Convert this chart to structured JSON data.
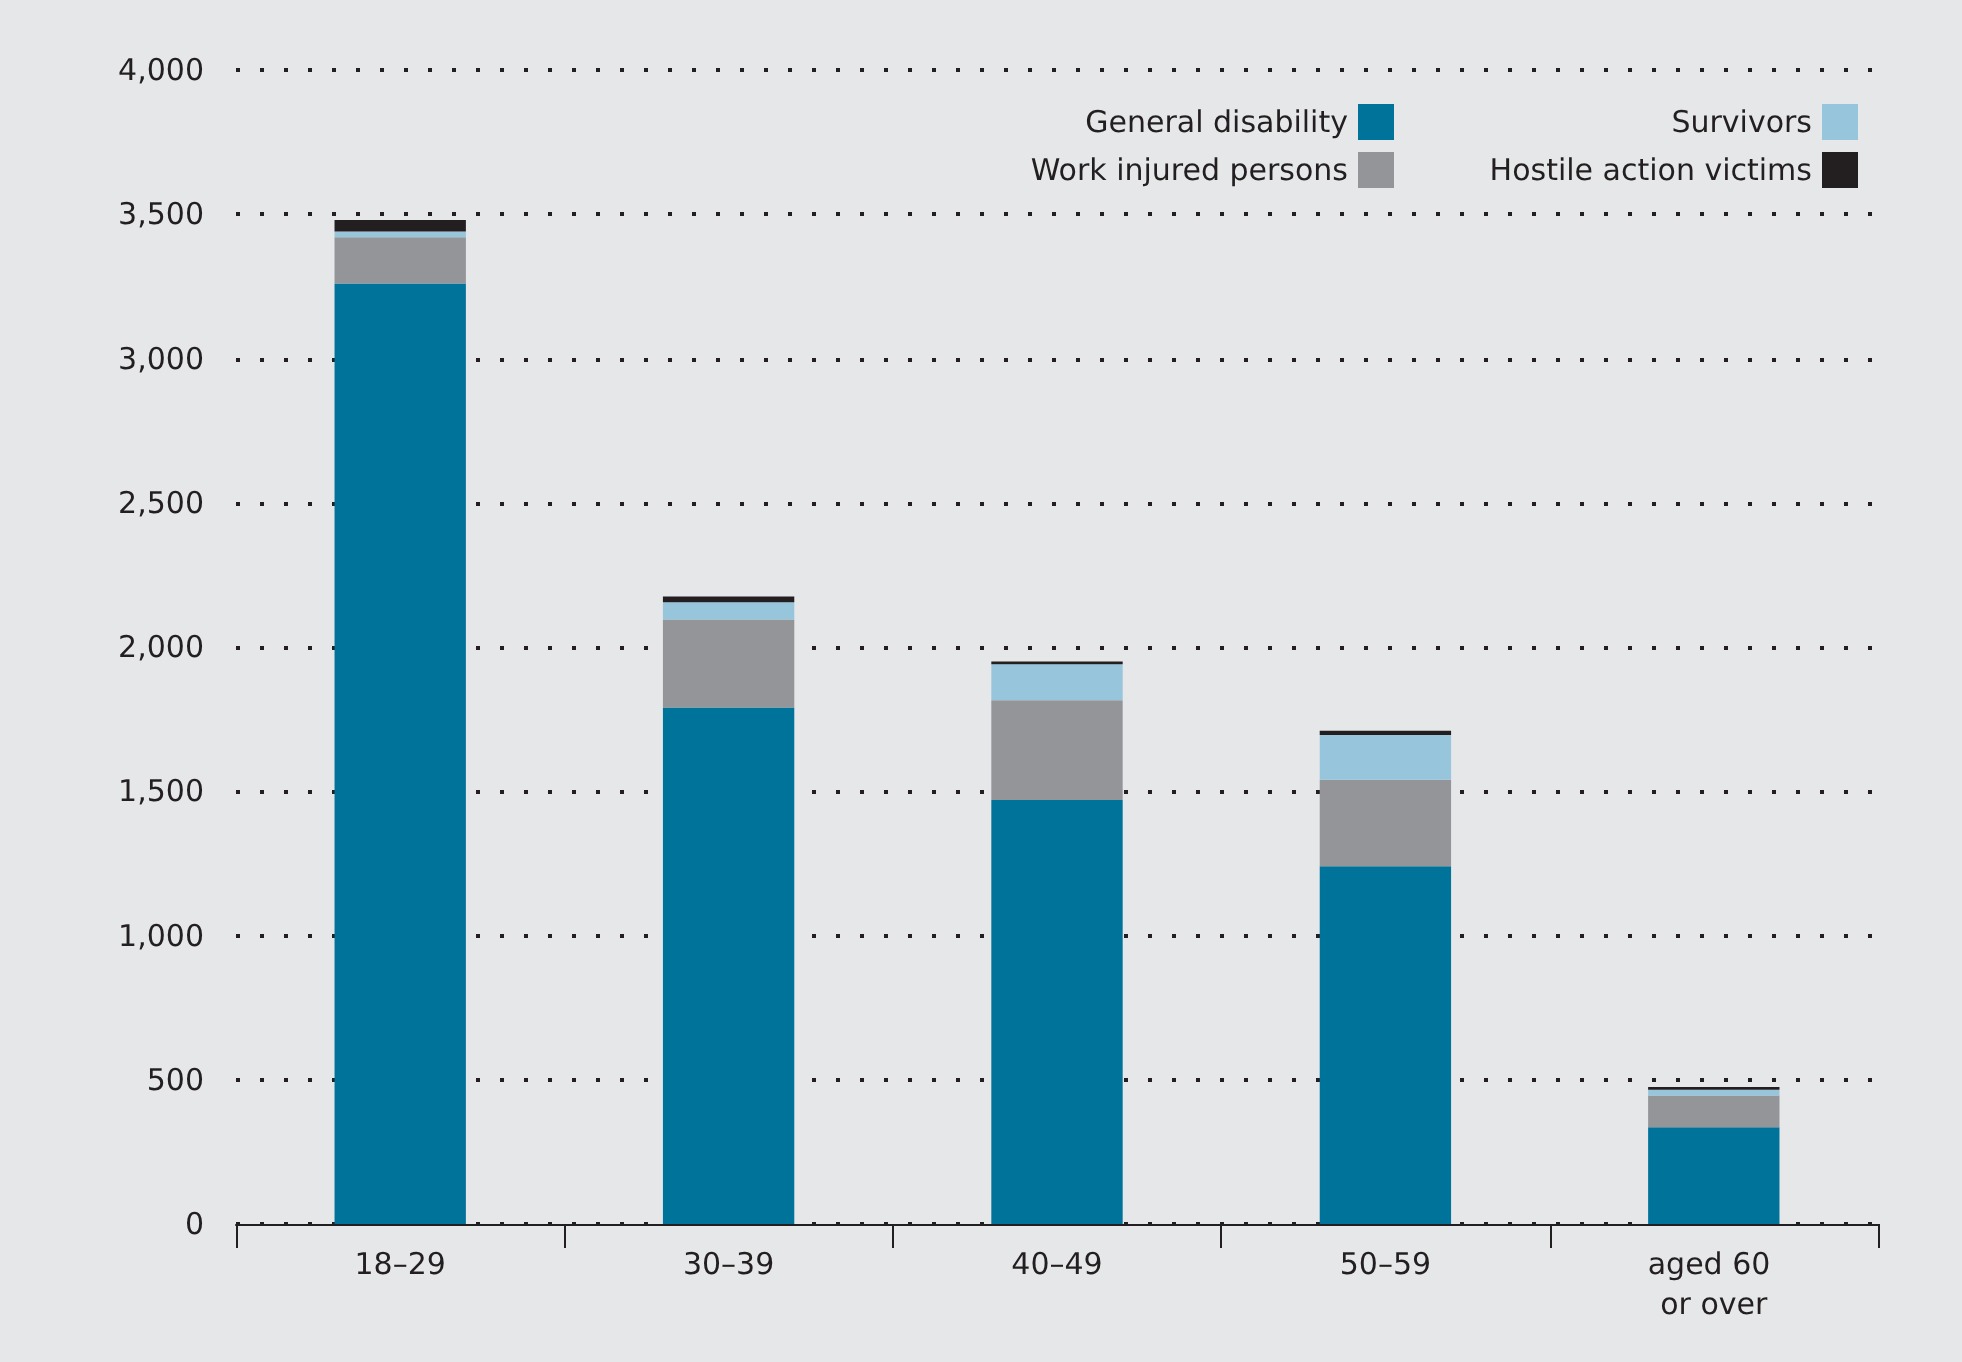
{
  "chart_data": {
    "type": "bar",
    "stacked": true,
    "categories": [
      "18–29",
      "30–39",
      "40–49",
      "50–59",
      "aged 60 or over"
    ],
    "series": [
      {
        "name": "General disability",
        "color": "#00739a",
        "values": [
          3260,
          1790,
          1470,
          1240,
          335
        ]
      },
      {
        "name": "Work injured persons",
        "color": "#939598",
        "values": [
          160,
          305,
          345,
          300,
          110
        ]
      },
      {
        "name": "Survivors",
        "color": "#97c5dc",
        "values": [
          20,
          60,
          125,
          155,
          20
        ]
      },
      {
        "name": "Hostile action victims",
        "color": "#231f20",
        "values": [
          40,
          20,
          10,
          15,
          10
        ]
      }
    ],
    "ylim": [
      0,
      4000
    ],
    "yticks": [
      {
        "value": 0,
        "label": "0"
      },
      {
        "value": 500,
        "label": "500"
      },
      {
        "value": 1000,
        "label": "1,000"
      },
      {
        "value": 1500,
        "label": "1,500"
      },
      {
        "value": 2000,
        "label": "2,000"
      },
      {
        "value": 2500,
        "label": "2,500"
      },
      {
        "value": 3000,
        "label": "3,000"
      },
      {
        "value": 3500,
        "label": "3,500"
      },
      {
        "value": 4000,
        "label": "4,000"
      }
    ],
    "grid": "y",
    "legend": "top right"
  }
}
